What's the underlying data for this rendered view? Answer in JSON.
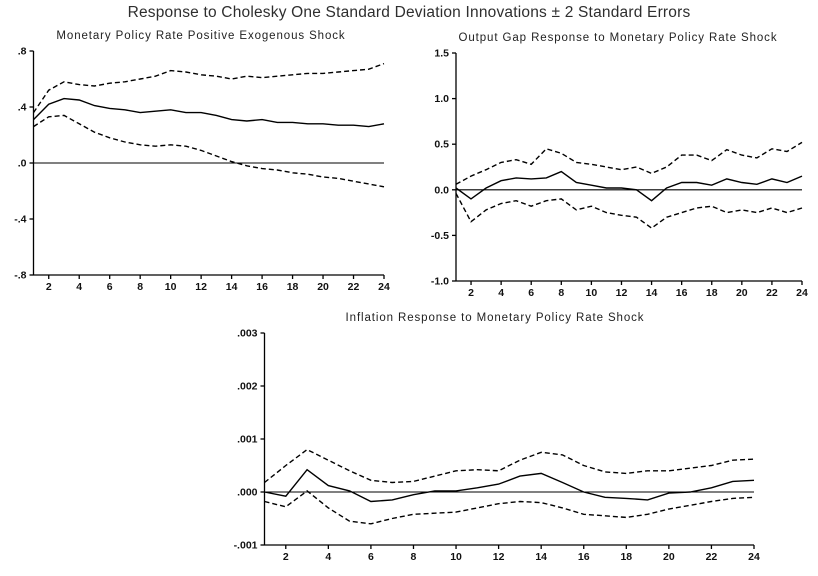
{
  "page_title": "Response to Cholesky One Standard Deviation Innovations ± 2 Standard Errors",
  "colors": {
    "line": "#000000",
    "text": "#222222",
    "background": "#ffffff"
  },
  "chart_data": [
    {
      "type": "line",
      "title": "Monetary Policy Rate Positive Exogenous Shock",
      "xlabel": "",
      "ylabel": "",
      "x": [
        1,
        2,
        3,
        4,
        5,
        6,
        7,
        8,
        9,
        10,
        11,
        12,
        13,
        14,
        15,
        16,
        17,
        18,
        19,
        20,
        21,
        22,
        23,
        24
      ],
      "xticks": [
        2,
        4,
        6,
        8,
        10,
        12,
        14,
        16,
        18,
        20,
        22,
        24
      ],
      "ylim": [
        -0.8,
        0.8
      ],
      "yticks": [
        {
          "value": 0.8,
          "label": ".8"
        },
        {
          "value": 0.4,
          "label": ".4"
        },
        {
          "value": 0.0,
          "label": ".0"
        },
        {
          "value": -0.4,
          "label": "-.4"
        },
        {
          "value": -0.8,
          "label": "-.8"
        }
      ],
      "zero_line": true,
      "grid": false,
      "legend": "none",
      "series": [
        {
          "name": "response",
          "style": "solid",
          "values": [
            0.31,
            0.42,
            0.46,
            0.45,
            0.41,
            0.39,
            0.38,
            0.36,
            0.37,
            0.38,
            0.36,
            0.36,
            0.34,
            0.31,
            0.3,
            0.31,
            0.29,
            0.29,
            0.28,
            0.28,
            0.27,
            0.27,
            0.26,
            0.28
          ]
        },
        {
          "name": "upper-band",
          "style": "dashed",
          "values": [
            0.36,
            0.52,
            0.58,
            0.56,
            0.55,
            0.57,
            0.58,
            0.6,
            0.62,
            0.66,
            0.65,
            0.63,
            0.62,
            0.6,
            0.62,
            0.61,
            0.62,
            0.63,
            0.64,
            0.64,
            0.65,
            0.66,
            0.67,
            0.71
          ]
        },
        {
          "name": "lower-band",
          "style": "dashed",
          "values": [
            0.26,
            0.33,
            0.34,
            0.28,
            0.22,
            0.18,
            0.15,
            0.13,
            0.12,
            0.13,
            0.12,
            0.09,
            0.05,
            0.01,
            -0.02,
            -0.04,
            -0.05,
            -0.07,
            -0.08,
            -0.1,
            -0.11,
            -0.13,
            -0.15,
            -0.17
          ]
        }
      ]
    },
    {
      "type": "line",
      "title": "Output Gap Response to Monetary Policy Rate Shock",
      "xlabel": "",
      "ylabel": "",
      "x": [
        1,
        2,
        3,
        4,
        5,
        6,
        7,
        8,
        9,
        10,
        11,
        12,
        13,
        14,
        15,
        16,
        17,
        18,
        19,
        20,
        21,
        22,
        23,
        24
      ],
      "xticks": [
        2,
        4,
        6,
        8,
        10,
        12,
        14,
        16,
        18,
        20,
        22,
        24
      ],
      "ylim": [
        -1.0,
        1.5
      ],
      "yticks": [
        {
          "value": 1.5,
          "label": "1.5"
        },
        {
          "value": 1.0,
          "label": "1.0"
        },
        {
          "value": 0.5,
          "label": "0.5"
        },
        {
          "value": 0.0,
          "label": "0.0"
        },
        {
          "value": -0.5,
          "label": "-0.5"
        },
        {
          "value": -1.0,
          "label": "-1.0"
        }
      ],
      "zero_line": true,
      "grid": false,
      "legend": "none",
      "series": [
        {
          "name": "response",
          "style": "solid",
          "values": [
            0.02,
            -0.1,
            0.02,
            0.1,
            0.13,
            0.12,
            0.13,
            0.2,
            0.08,
            0.05,
            0.02,
            0.02,
            0.0,
            -0.12,
            0.02,
            0.08,
            0.08,
            0.05,
            0.12,
            0.08,
            0.06,
            0.12,
            0.08,
            0.15
          ]
        },
        {
          "name": "upper-band",
          "style": "dashed",
          "values": [
            0.06,
            0.15,
            0.22,
            0.3,
            0.33,
            0.28,
            0.45,
            0.4,
            0.3,
            0.28,
            0.25,
            0.22,
            0.25,
            0.18,
            0.25,
            0.38,
            0.38,
            0.32,
            0.44,
            0.38,
            0.35,
            0.45,
            0.42,
            0.52
          ]
        },
        {
          "name": "lower-band",
          "style": "dashed",
          "values": [
            -0.04,
            -0.35,
            -0.22,
            -0.15,
            -0.12,
            -0.18,
            -0.12,
            -0.1,
            -0.22,
            -0.18,
            -0.25,
            -0.28,
            -0.3,
            -0.42,
            -0.3,
            -0.25,
            -0.2,
            -0.18,
            -0.25,
            -0.22,
            -0.25,
            -0.2,
            -0.25,
            -0.2
          ]
        }
      ]
    },
    {
      "type": "line",
      "title": "Inflation Response to Monetary Policy Rate Shock",
      "xlabel": "",
      "ylabel": "",
      "x": [
        1,
        2,
        3,
        4,
        5,
        6,
        7,
        8,
        9,
        10,
        11,
        12,
        13,
        14,
        15,
        16,
        17,
        18,
        19,
        20,
        21,
        22,
        23,
        24
      ],
      "xticks": [
        2,
        4,
        6,
        8,
        10,
        12,
        14,
        16,
        18,
        20,
        22,
        24
      ],
      "ylim": [
        -0.001,
        0.003
      ],
      "yticks": [
        {
          "value": 0.003,
          "label": ".003"
        },
        {
          "value": 0.002,
          "label": ".002"
        },
        {
          "value": 0.001,
          "label": ".001"
        },
        {
          "value": 0.0,
          "label": ".000"
        },
        {
          "value": -0.001,
          "label": "-.001"
        }
      ],
      "zero_line": true,
      "grid": false,
      "legend": "none",
      "series": [
        {
          "name": "response",
          "style": "solid",
          "values": [
            0.0,
            -8e-05,
            0.00042,
            0.00012,
            2e-05,
            -0.00018,
            -0.00015,
            -5e-05,
            2e-05,
            2e-05,
            8e-05,
            0.00015,
            0.0003,
            0.00035,
            0.00018,
            0.0,
            -0.0001,
            -0.00012,
            -0.00015,
            -2e-05,
            0.0,
            8e-05,
            0.0002,
            0.00022
          ]
        },
        {
          "name": "upper-band",
          "style": "dashed",
          "values": [
            0.00018,
            0.0005,
            0.0008,
            0.0006,
            0.0004,
            0.00022,
            0.00018,
            0.0002,
            0.0003,
            0.0004,
            0.00042,
            0.0004,
            0.0006,
            0.00075,
            0.0007,
            0.0005,
            0.00038,
            0.00035,
            0.0004,
            0.0004,
            0.00045,
            0.0005,
            0.0006,
            0.00062
          ]
        },
        {
          "name": "lower-band",
          "style": "dashed",
          "values": [
            -0.00018,
            -0.00028,
            2e-05,
            -0.0003,
            -0.00055,
            -0.0006,
            -0.0005,
            -0.00042,
            -0.0004,
            -0.00038,
            -0.0003,
            -0.00022,
            -0.00018,
            -0.0002,
            -0.0003,
            -0.00042,
            -0.00045,
            -0.00048,
            -0.00042,
            -0.00032,
            -0.00025,
            -0.00018,
            -0.00012,
            -0.0001
          ]
        }
      ]
    }
  ]
}
